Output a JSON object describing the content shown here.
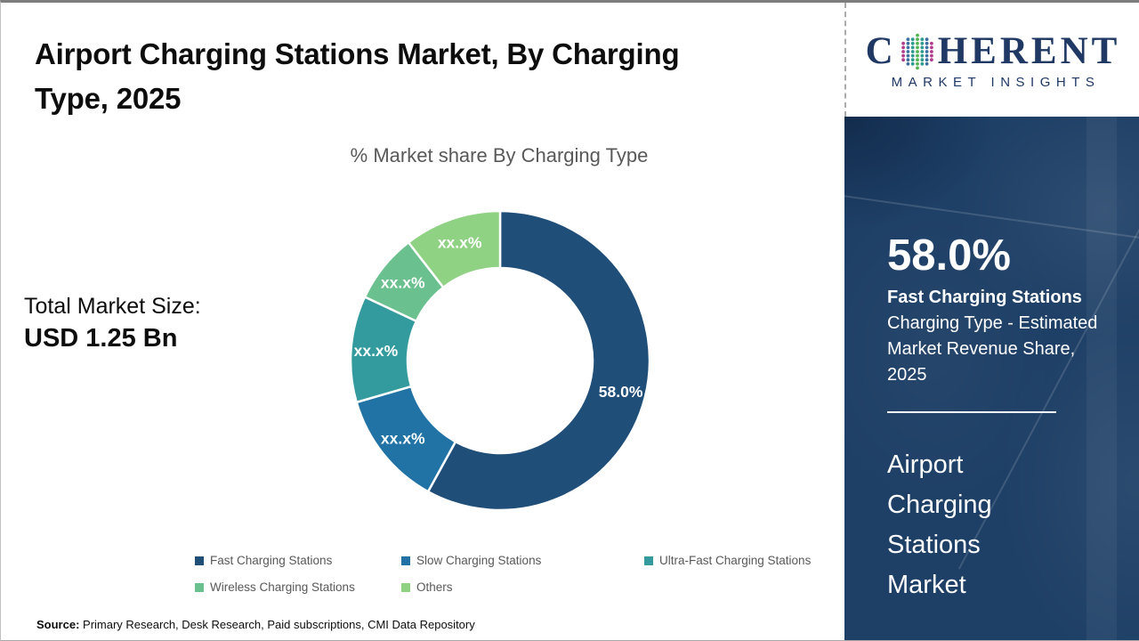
{
  "header": {
    "title": "Airport Charging Stations Market, By Charging Type, 2025"
  },
  "left_panel": {
    "total_market_label": "Total Market Size:",
    "total_market_value": "USD 1.25 Bn"
  },
  "chart_data": {
    "type": "pie",
    "subtype": "donut",
    "title": "% Market share By Charging Type",
    "start_angle_deg": 0,
    "direction": "clockwise",
    "legend_position": "bottom",
    "segments": [
      {
        "name": "Fast Charging Stations",
        "display_label": "58.0%",
        "value": 58.0,
        "color": "#1F4E79"
      },
      {
        "name": "Slow Charging Stations",
        "display_label": "xx.x%",
        "value": 12.5,
        "color": "#2173A6"
      },
      {
        "name": "Ultra-Fast Charging Stations",
        "display_label": "xx.x%",
        "value": 11.5,
        "color": "#339A9D"
      },
      {
        "name": "Wireless Charging Stations",
        "display_label": "xx.x%",
        "value": 7.5,
        "color": "#6AC08F"
      },
      {
        "name": "Others",
        "display_label": "xx.x%",
        "value": 10.5,
        "color": "#90D284"
      }
    ]
  },
  "sidebar": {
    "logo": {
      "brand": "COHERENT",
      "brand_part1": "C",
      "brand_part2": "HERENT",
      "subtitle": "MARKET INSIGHTS"
    },
    "highlight_value": "58.0%",
    "highlight_title": "Fast Charging Stations",
    "highlight_description": "Charging Type - Estimated Market Revenue Share, 2025",
    "market_name": "Airport Charging Stations Market",
    "background_color": "#1E3F66"
  },
  "footer": {
    "source_label": "Source:",
    "source_text": "Primary Research, Desk Research, Paid subscriptions, CMI Data Repository"
  }
}
